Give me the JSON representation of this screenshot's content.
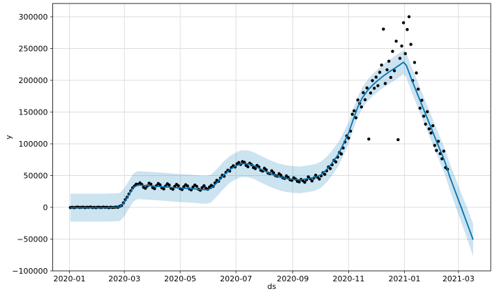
{
  "figure": {
    "kind": "matplotlib-prophet-forecast",
    "background": "#ffffff"
  },
  "chart_data": {
    "type": "line",
    "title": "",
    "xlabel": "ds",
    "ylabel": "y",
    "grid": true,
    "legend": null,
    "x_unit": "days since 2020-01-01",
    "xlim_days": [
      -18.3,
      460.3
    ],
    "ylim": [
      -100000,
      320900
    ],
    "x_ticks": [
      {
        "day": 0,
        "label": "2020-01"
      },
      {
        "day": 60,
        "label": "2020-03"
      },
      {
        "day": 121,
        "label": "2020-05"
      },
      {
        "day": 182,
        "label": "2020-07"
      },
      {
        "day": 244,
        "label": "2020-09"
      },
      {
        "day": 305,
        "label": "2020-11"
      },
      {
        "day": 366,
        "label": "2021-01"
      },
      {
        "day": 425,
        "label": "2021-03"
      }
    ],
    "y_ticks": [
      {
        "value": -100000,
        "label": "−100000"
      },
      {
        "value": -50000,
        "label": "−50000"
      },
      {
        "value": 0,
        "label": "0"
      },
      {
        "value": 50000,
        "label": "50000"
      },
      {
        "value": 100000,
        "label": "100000"
      },
      {
        "value": 150000,
        "label": "150000"
      },
      {
        "value": 200000,
        "label": "200000"
      },
      {
        "value": 250000,
        "label": "250000"
      },
      {
        "value": 300000,
        "label": "300000"
      }
    ],
    "colors": {
      "forecast_line": "#0072B2",
      "uncertainty_band": "rgba(0,114,178,0.2)",
      "points": "#000000",
      "grid": "#dcdcdc",
      "spine": "#2b2b2b"
    },
    "series": [
      {
        "name": "observations",
        "style": "scatter-black-dots"
      },
      {
        "name": "yhat",
        "style": "blue-line"
      },
      {
        "name": "uncertainty-interval",
        "style": "light-blue-band"
      }
    ],
    "trend": [
      [
        1,
        -500,
        -22500,
        21500
      ],
      [
        20,
        -500,
        -22500,
        21500
      ],
      [
        40,
        -500,
        -22500,
        21500
      ],
      [
        55,
        500,
        -21500,
        22500
      ],
      [
        60,
        8000,
        -14000,
        30000
      ],
      [
        65,
        20000,
        -2000,
        42000
      ],
      [
        70,
        31500,
        9500,
        53500
      ],
      [
        75,
        35000,
        13000,
        57000
      ],
      [
        85,
        34200,
        12200,
        56200
      ],
      [
        95,
        33200,
        11200,
        55200
      ],
      [
        105,
        32200,
        10200,
        54200
      ],
      [
        115,
        30900,
        8900,
        52900
      ],
      [
        125,
        30100,
        8100,
        52100
      ],
      [
        135,
        29200,
        7200,
        51200
      ],
      [
        143,
        28100,
        6100,
        50100
      ],
      [
        150,
        27600,
        5600,
        49600
      ],
      [
        155,
        30000,
        8000,
        52000
      ],
      [
        161,
        38500,
        17000,
        60000
      ],
      [
        168,
        50000,
        28500,
        71500
      ],
      [
        175,
        59500,
        38500,
        80500
      ],
      [
        182,
        65500,
        44500,
        86500
      ],
      [
        188,
        68800,
        47800,
        89800
      ],
      [
        195,
        68500,
        47500,
        89500
      ],
      [
        201,
        66000,
        45000,
        87000
      ],
      [
        208,
        61000,
        40000,
        82000
      ],
      [
        215,
        56000,
        35000,
        77000
      ],
      [
        222,
        51500,
        30500,
        72500
      ],
      [
        230,
        47500,
        26500,
        68500
      ],
      [
        237,
        45200,
        24200,
        66200
      ],
      [
        245,
        43800,
        22800,
        64800
      ],
      [
        252,
        43300,
        22300,
        64300
      ],
      [
        260,
        44800,
        23800,
        65800
      ],
      [
        268,
        46800,
        25800,
        67800
      ],
      [
        275,
        51500,
        31000,
        72000
      ],
      [
        282,
        61000,
        41000,
        81000
      ],
      [
        288,
        72000,
        52500,
        91500
      ],
      [
        294,
        84000,
        65000,
        103000
      ],
      [
        299,
        99000,
        81000,
        117000
      ],
      [
        305,
        117000,
        100000,
        134000
      ],
      [
        310,
        138000,
        121500,
        154500
      ],
      [
        315,
        158000,
        141500,
        174500
      ],
      [
        320,
        172500,
        156000,
        189000
      ],
      [
        326,
        184500,
        167500,
        201500
      ],
      [
        332,
        193500,
        176000,
        211000
      ],
      [
        338,
        201000,
        183000,
        219000
      ],
      [
        344,
        208000,
        189500,
        226500
      ],
      [
        350,
        214000,
        195000,
        233000
      ],
      [
        356,
        219500,
        200500,
        238500
      ],
      [
        361,
        224500,
        205500,
        243500
      ],
      [
        365,
        228500,
        209500,
        247500
      ],
      [
        368,
        223500,
        204000,
        243000
      ],
      [
        374,
        200500,
        181000,
        220000
      ],
      [
        381,
        175500,
        155500,
        195500
      ],
      [
        388,
        150500,
        130500,
        170500
      ],
      [
        395,
        125500,
        105500,
        145500
      ],
      [
        402,
        100500,
        80500,
        120500
      ],
      [
        408,
        80000,
        60000,
        100000
      ],
      [
        412,
        64000,
        43500,
        84500
      ],
      [
        415,
        50000,
        29000,
        71000
      ],
      [
        422,
        23000,
        1000,
        45500
      ],
      [
        428,
        0,
        -23000,
        22500
      ],
      [
        434,
        -23500,
        -47500,
        1000
      ],
      [
        441,
        -51000,
        -77500,
        -26000
      ]
    ],
    "observations": {
      "start_day": 1,
      "step_days": 2,
      "y": [
        -300,
        200,
        -500,
        100,
        400,
        -200,
        0,
        300,
        -400,
        200,
        -100,
        500,
        -300,
        100,
        -600,
        300,
        0,
        -200,
        400,
        -100,
        200,
        -500,
        300,
        -200,
        100,
        400,
        0,
        1500,
        3000,
        7000,
        12000,
        16000,
        21000,
        26000,
        30500,
        33500,
        36500,
        36000,
        38500,
        36000,
        31500,
        30000,
        33500,
        38000,
        36500,
        31000,
        29500,
        34000,
        37500,
        35500,
        30500,
        29000,
        33500,
        37000,
        35000,
        30000,
        28500,
        33000,
        36000,
        34000,
        29500,
        28000,
        32500,
        35500,
        33500,
        29000,
        27500,
        32000,
        35000,
        33000,
        28500,
        27000,
        31000,
        34000,
        30000,
        28500,
        32000,
        34500,
        33000,
        38500,
        42500,
        41000,
        46000,
        50500,
        49000,
        55000,
        58500,
        57000,
        62500,
        65500,
        63500,
        68500,
        70500,
        67500,
        72000,
        71000,
        66000,
        64000,
        69500,
        67000,
        62500,
        61000,
        66000,
        63500,
        58500,
        57000,
        61500,
        59000,
        54000,
        53000,
        57500,
        54500,
        50000,
        49000,
        53000,
        50500,
        46500,
        45500,
        49500,
        47000,
        43500,
        42500,
        46500,
        44500,
        41000,
        40000,
        44000,
        42000,
        39500,
        43500,
        48000,
        45000,
        41500,
        46000,
        50500,
        47500,
        44500,
        49500,
        54500,
        52000,
        57500,
        63500,
        61000,
        67000,
        74000,
        71500,
        79000,
        86500,
        84000,
        93500,
        103000,
        112500,
        109000,
        120000,
        146500,
        152000,
        141000,
        169000,
        163500,
        158000,
        180500,
        169500,
        188000,
        107500,
        180000,
        199500,
        187500,
        205000,
        191500,
        212500,
        224000,
        280500,
        195000,
        216500,
        230000,
        204500,
        245500,
        215000,
        261500,
        106500,
        234500,
        254000,
        290500,
        242000,
        279900,
        300000,
        256500,
        199500,
        228000,
        211500,
        186000,
        156000,
        168500,
        143500,
        131000,
        150500,
        123500,
        117000,
        128500,
        97500,
        89500,
        104000,
        84500,
        76500,
        88500,
        62500,
        60000
      ]
    }
  }
}
